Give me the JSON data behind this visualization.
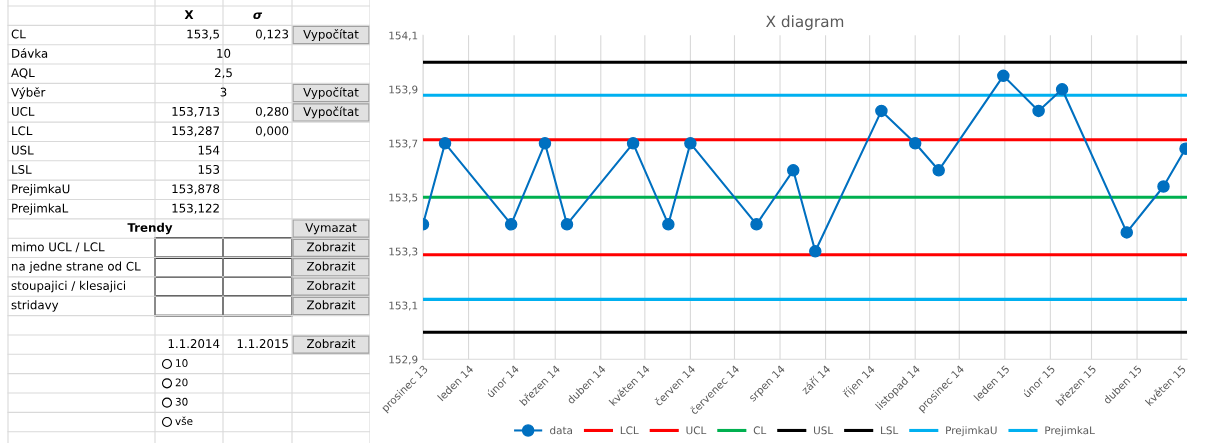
{
  "chart_data": [
    {
      "type": "other",
      "annotations": [
        "X",
        "σ",
        "CL",
        "153,5",
        "0,123",
        "Vypočítat",
        "Dávka",
        "10",
        "AQL",
        "2,5",
        "Výběr",
        "3",
        "Vypočítat",
        "UCL",
        "153,713",
        "0,280",
        "Vypočítat",
        "LCL",
        "153,287",
        "0,000",
        "USL",
        "154",
        "LSL",
        "153",
        "PrejimkaU",
        "153,878",
        "PrejimkaL",
        "153,122",
        "Trendy",
        "Vymazat",
        "mimo UCL / LCL",
        "Zobrazit",
        "na jedne strane od CL",
        "Zobrazit",
        "stoupajici / klesajici",
        "Zobrazit",
        "stridavy",
        "Zobrazit",
        "1.1.2014",
        "1.1.2015",
        "Zobrazit",
        "10",
        "20",
        "30",
        "vše"
      ]
    },
    {
      "type": "line",
      "title": "X diagram",
      "x": [
        "2013-12-01",
        "2013-12-16",
        "2014-01-30",
        "2014-02-22",
        "2014-03-09",
        "2014-04-23",
        "2014-05-17",
        "2014-06-01",
        "2014-07-16",
        "2014-08-10",
        "2014-08-25",
        "2014-10-09",
        "2014-11-01",
        "2014-11-17",
        "2014-12-31",
        "2015-01-24",
        "2015-02-09",
        "2015-03-25",
        "2015-04-19",
        "2015-05-04"
      ],
      "series": [
        {
          "name": "data",
          "color": "#0070c0",
          "values": [
            153.4,
            153.7,
            153.4,
            153.7,
            153.4,
            153.7,
            153.4,
            153.7,
            153.4,
            153.6,
            153.3,
            153.82,
            153.7,
            153.6,
            153.95,
            153.82,
            153.9,
            153.37,
            153.54,
            153.68
          ]
        }
      ],
      "ref_lines": [
        {
          "axis": "y",
          "value": 153.287,
          "label": "LCL",
          "color": "#ff0000"
        },
        {
          "axis": "y",
          "value": 153.713,
          "label": "UCL",
          "color": "#ff0000"
        },
        {
          "axis": "y",
          "value": 153.5,
          "label": "CL",
          "color": "#00b050"
        },
        {
          "axis": "y",
          "value": 154,
          "label": "USL",
          "color": "#000000"
        },
        {
          "axis": "y",
          "value": 153,
          "label": "LSL",
          "color": "#000000"
        },
        {
          "axis": "y",
          "value": 153.878,
          "label": "PrejimkaU",
          "color": "#00b0f0"
        },
        {
          "axis": "y",
          "value": 153.122,
          "label": "PrejimkaL",
          "color": "#00b0f0"
        }
      ],
      "xlim": [
        "2013-12-01",
        "2015-05-05"
      ],
      "xticks": [
        {
          "value": "2013-12-01",
          "label": "prosinec 13"
        },
        {
          "value": "2014-01-01",
          "label": "leden 14"
        },
        {
          "value": "2014-02-01",
          "label": "únor 14"
        },
        {
          "value": "2014-03-01",
          "label": "březen 14"
        },
        {
          "value": "2014-04-01",
          "label": "duben 14"
        },
        {
          "value": "2014-05-01",
          "label": "květen 14"
        },
        {
          "value": "2014-06-01",
          "label": "červen 14"
        },
        {
          "value": "2014-07-01",
          "label": "červenec 14"
        },
        {
          "value": "2014-08-01",
          "label": "srpen 14"
        },
        {
          "value": "2014-09-01",
          "label": "září 14"
        },
        {
          "value": "2014-10-01",
          "label": "říjen 14"
        },
        {
          "value": "2014-11-01",
          "label": "listopad 14"
        },
        {
          "value": "2014-12-01",
          "label": "prosinec 14"
        },
        {
          "value": "2015-01-01",
          "label": "leden 15"
        },
        {
          "value": "2015-02-01",
          "label": "únor 15"
        },
        {
          "value": "2015-03-01",
          "label": "březen 15"
        },
        {
          "value": "2015-04-01",
          "label": "duben 15"
        },
        {
          "value": "2015-05-01",
          "label": "květen 15"
        }
      ],
      "ylim": [
        152.9,
        154.1
      ],
      "yticks": [
        {
          "value": 152.9,
          "label": "152,9"
        },
        {
          "value": 153.1,
          "label": "153,1"
        },
        {
          "value": 153.3,
          "label": "153,3"
        },
        {
          "value": 153.5,
          "label": "153,5"
        },
        {
          "value": 153.7,
          "label": "153,7"
        },
        {
          "value": 153.9,
          "label": "153,9"
        },
        {
          "value": 154.1,
          "label": "154,1"
        }
      ],
      "grid": "x",
      "legend": "bottom",
      "marker": "circle",
      "line_style": "solid"
    }
  ]
}
